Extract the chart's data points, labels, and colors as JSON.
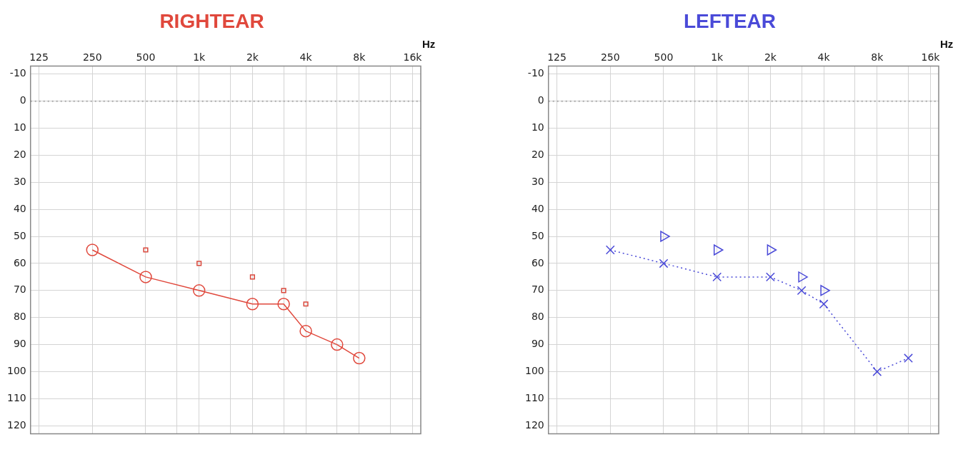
{
  "chart_data": [
    {
      "type": "line",
      "title": "RIGHTEAR",
      "xlabel": "Hz",
      "log": "x",
      "grid": true,
      "legend": false,
      "xlim": [
        112,
        17800
      ],
      "ylim": [
        123,
        -13
      ],
      "xticks": [
        {
          "value": 125,
          "label": "125"
        },
        {
          "value": 250,
          "label": "250"
        },
        {
          "value": 500,
          "label": "500"
        },
        {
          "value": 750,
          "label": null
        },
        {
          "value": 1000,
          "label": "1k"
        },
        {
          "value": 1500,
          "label": null
        },
        {
          "value": 2000,
          "label": "2k"
        },
        {
          "value": 3000,
          "label": null
        },
        {
          "value": 4000,
          "label": "4k"
        },
        {
          "value": 6000,
          "label": null
        },
        {
          "value": 8000,
          "label": "8k"
        },
        {
          "value": 12000,
          "label": null
        },
        {
          "value": 16000,
          "label": "16k"
        }
      ],
      "yticks": [
        -10,
        0,
        10,
        20,
        30,
        40,
        50,
        60,
        70,
        80,
        90,
        100,
        110,
        120
      ],
      "ref_lines": [
        {
          "axis": "y",
          "value": 0,
          "color": "#a8a8a8",
          "line_style": "dotted"
        }
      ],
      "series": [
        {
          "type": "line",
          "color": "#e0483c",
          "marker": "circle",
          "line_style": "solid",
          "x": [
            250,
            500,
            1000,
            2000,
            3000,
            4000,
            6000,
            8000
          ],
          "values": [
            55,
            65,
            70,
            75,
            75,
            85,
            90,
            95
          ]
        },
        {
          "type": "scatter",
          "color": "#d9483c",
          "marker": "square",
          "x": [
            500,
            1000,
            2000,
            3000,
            4000
          ],
          "values": [
            55,
            60,
            65,
            70,
            75
          ]
        }
      ]
    },
    {
      "type": "line",
      "title": "LEFTEAR",
      "xlabel": "Hz",
      "log": "x",
      "grid": true,
      "legend": false,
      "xlim": [
        112,
        17800
      ],
      "ylim": [
        123,
        -13
      ],
      "xticks": [
        {
          "value": 125,
          "label": "125"
        },
        {
          "value": 250,
          "label": "250"
        },
        {
          "value": 500,
          "label": "500"
        },
        {
          "value": 750,
          "label": null
        },
        {
          "value": 1000,
          "label": "1k"
        },
        {
          "value": 1500,
          "label": null
        },
        {
          "value": 2000,
          "label": "2k"
        },
        {
          "value": 3000,
          "label": null
        },
        {
          "value": 4000,
          "label": "4k"
        },
        {
          "value": 6000,
          "label": null
        },
        {
          "value": 8000,
          "label": "8k"
        },
        {
          "value": 12000,
          "label": null
        },
        {
          "value": 16000,
          "label": "16k"
        }
      ],
      "yticks": [
        -10,
        0,
        10,
        20,
        30,
        40,
        50,
        60,
        70,
        80,
        90,
        100,
        110,
        120
      ],
      "ref_lines": [
        {
          "axis": "y",
          "value": 0,
          "color": "#a8a8a8",
          "line_style": "dotted"
        }
      ],
      "series": [
        {
          "type": "line",
          "color": "#4a4ad8",
          "marker": "cross",
          "line_style": "dotted",
          "x": [
            250,
            500,
            1000,
            2000,
            3000,
            4000,
            8000,
            12000
          ],
          "values": [
            55,
            60,
            65,
            65,
            70,
            75,
            100,
            95
          ]
        },
        {
          "type": "scatter",
          "color": "#4a4ad8",
          "marker": "triangle",
          "x": [
            500,
            1000,
            2000,
            3000,
            4000
          ],
          "values": [
            50,
            55,
            55,
            65,
            70
          ]
        }
      ]
    }
  ]
}
